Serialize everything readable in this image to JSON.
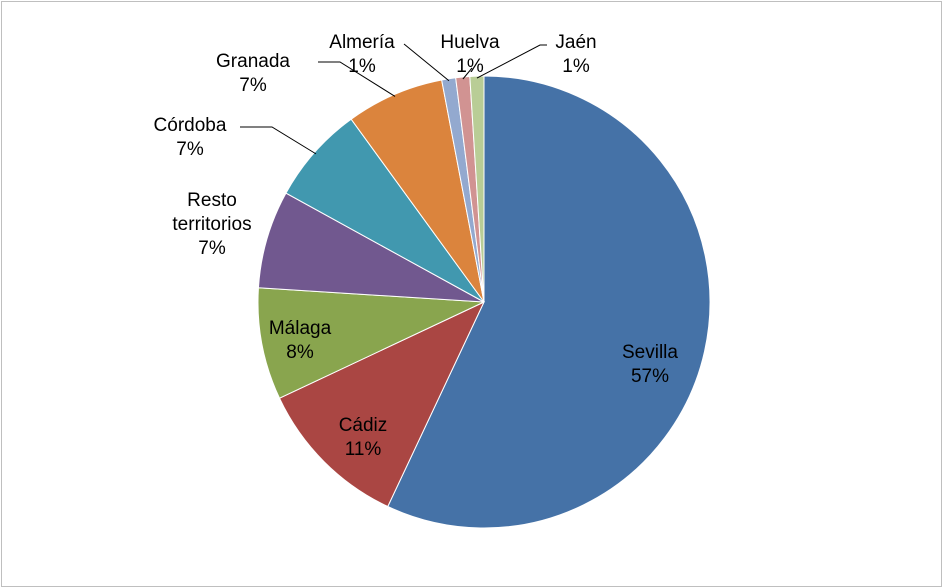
{
  "chart_data": {
    "type": "pie",
    "categories": [
      "Sevilla",
      "Cádiz",
      "Málaga",
      "Resto territorios",
      "Córdoba",
      "Granada",
      "Almería",
      "Huelva",
      "Jaén"
    ],
    "values": [
      57,
      11,
      8,
      7,
      7,
      7,
      1,
      1,
      1
    ],
    "value_labels": [
      "57%",
      "11%",
      "8%",
      "7%",
      "7%",
      "7%",
      "1%",
      "1%",
      "1%"
    ],
    "colors": [
      "#4572A7",
      "#AA4643",
      "#89A54E",
      "#71588F",
      "#4198AF",
      "#DB843D",
      "#93A9CF",
      "#D19392",
      "#B9CD96"
    ]
  }
}
